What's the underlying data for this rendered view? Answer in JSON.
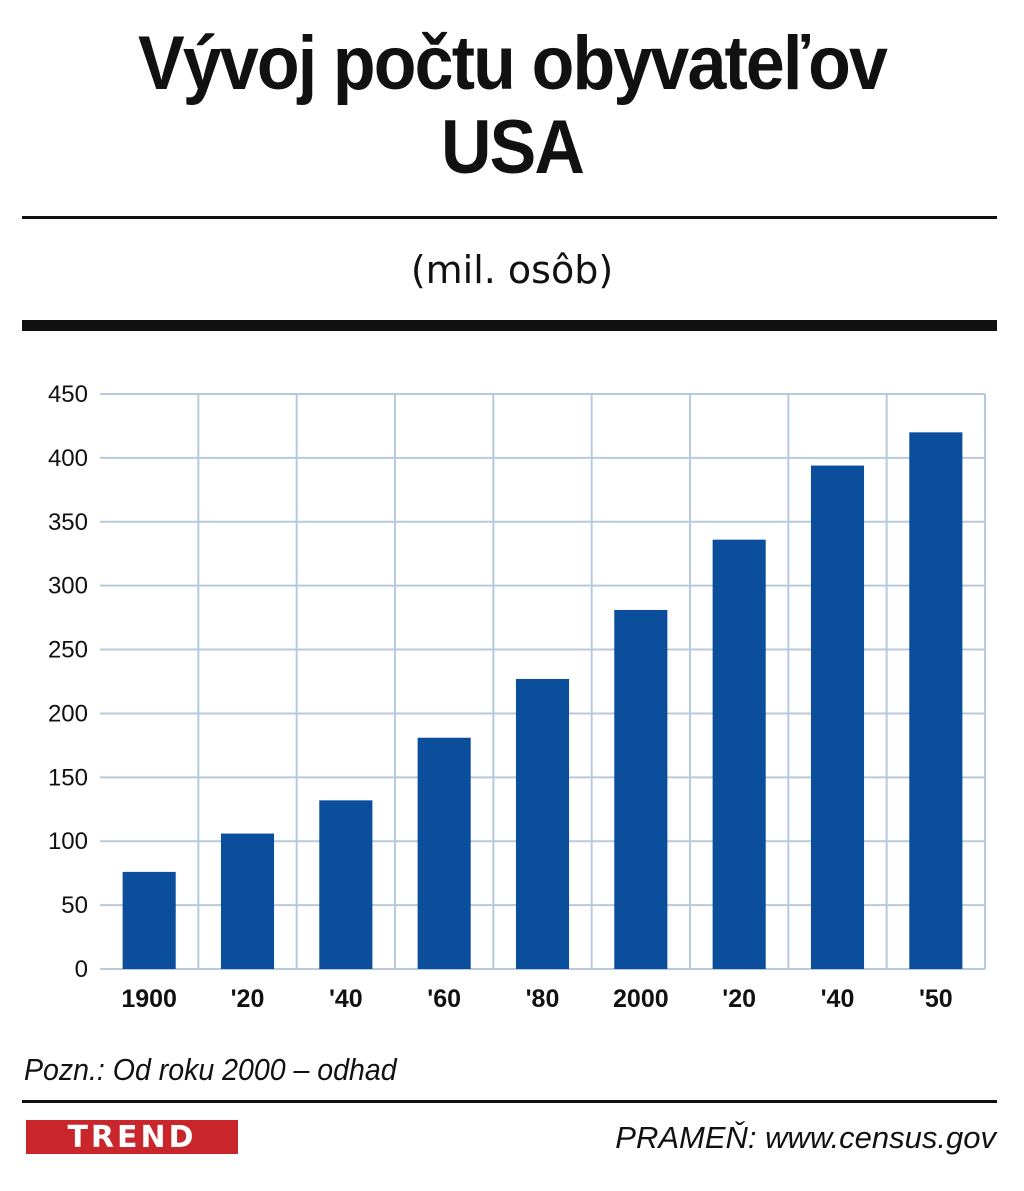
{
  "title_line1": "Vývoj počtu obyvateľov",
  "title_line2": "USA",
  "subtitle": "(mil. osôb)",
  "note": "Pozn.: Od roku 2000 – odhad",
  "logo": "TREND",
  "source": "PRAMEŇ: www.census.gov",
  "colors": {
    "bar": "#0b4f9c",
    "grid": "#b7c9dd",
    "logo": "#c8262b"
  },
  "chart_data": {
    "type": "bar",
    "categories": [
      "1900",
      "'20",
      "'40",
      "'60",
      "'80",
      "2000",
      "'20",
      "'40",
      "'50"
    ],
    "values": [
      76,
      106,
      132,
      181,
      227,
      281,
      336,
      394,
      420
    ],
    "ylim": [
      0,
      450
    ],
    "yticks": [
      0,
      50,
      100,
      150,
      200,
      250,
      300,
      350,
      400,
      450
    ],
    "grid": true,
    "legend": "none"
  }
}
